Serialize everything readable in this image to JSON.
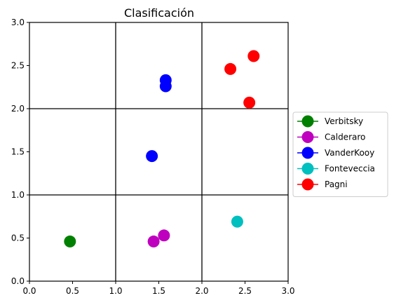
{
  "chart_data": {
    "type": "scatter",
    "title": "Clasificación",
    "xlabel": "",
    "ylabel": "",
    "xlim": [
      0,
      3
    ],
    "ylim": [
      0,
      3
    ],
    "xticks": [
      "0.0",
      "0.5",
      "1.0",
      "1.5",
      "2.0",
      "2.5",
      "3.0"
    ],
    "yticks": [
      "0.0",
      "0.5",
      "1.0",
      "1.5",
      "2.0",
      "2.5",
      "3.0"
    ],
    "grid_lines": [
      1,
      2
    ],
    "legend_position": "right",
    "series": [
      {
        "name": "Verbitsky",
        "color": "#008000",
        "points": [
          [
            0.47,
            0.46
          ]
        ]
      },
      {
        "name": "Calderaro",
        "color": "#bf00bf",
        "points": [
          [
            1.44,
            0.46
          ],
          [
            1.56,
            0.53
          ]
        ]
      },
      {
        "name": "VanderKooy",
        "color": "#0000ff",
        "points": [
          [
            1.58,
            2.33
          ],
          [
            1.58,
            2.26
          ],
          [
            1.42,
            1.45
          ]
        ]
      },
      {
        "name": "Fonteveccia",
        "color": "#00bfbf",
        "points": [
          [
            2.41,
            0.69
          ]
        ]
      },
      {
        "name": "Pagni",
        "color": "#ff0000",
        "points": [
          [
            2.6,
            2.61
          ],
          [
            2.33,
            2.46
          ],
          [
            2.55,
            2.07
          ]
        ]
      }
    ]
  }
}
